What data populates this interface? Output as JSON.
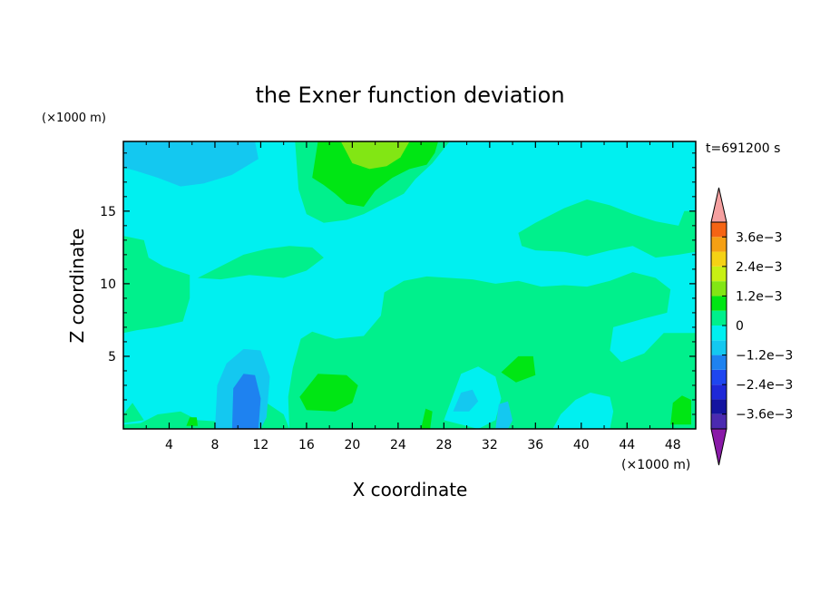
{
  "chart_data": {
    "type": "heatmap",
    "title": "the Exner function deviation",
    "time_label": "t=691200 s",
    "xlabel": "X coordinate",
    "ylabel": "Z coordinate",
    "x_unit": "(×1000 m)",
    "y_unit": "(×1000 m)",
    "xlim": [
      0,
      50
    ],
    "ylim": [
      0,
      19.8
    ],
    "x_ticks": [
      "4",
      "8",
      "12",
      "16",
      "20",
      "24",
      "28",
      "32",
      "36",
      "40",
      "44",
      "48"
    ],
    "x_tick_values": [
      4,
      8,
      12,
      16,
      20,
      24,
      28,
      32,
      36,
      40,
      44,
      48
    ],
    "y_ticks": [
      "5",
      "10",
      "15"
    ],
    "y_tick_values": [
      5,
      10,
      15
    ],
    "colorbar": {
      "levels": [
        -0.0042,
        -0.0036,
        -0.003,
        -0.0024,
        -0.0018,
        -0.0012,
        -0.0006,
        0,
        0.0006,
        0.0012,
        0.0018,
        0.0024,
        0.003,
        0.0036,
        0.0042
      ],
      "colors": [
        "#8a1aa8",
        "#4b2ab0",
        "#1414a0",
        "#1e28d8",
        "#1e46f0",
        "#1e82f0",
        "#14c8f0",
        "#00f0f0",
        "#00f08c",
        "#00e614",
        "#82e614",
        "#c8f014",
        "#f5d214",
        "#f5a014",
        "#f56414",
        "#f01e14",
        "#f5a0a0"
      ],
      "labels": [
        "3.6e−3",
        "2.4e−3",
        "1.2e−3",
        "0",
        "−1.2e−3",
        "−2.4e−3",
        "−3.6e−3"
      ],
      "label_values": [
        0.0036,
        0.0024,
        0.0012,
        0,
        -0.0012,
        -0.0024,
        -0.0036
      ]
    },
    "regions": [
      {
        "value": -0.0003,
        "points": [
          [
            0,
            0
          ],
          [
            50,
            0
          ],
          [
            50,
            19.8
          ],
          [
            0,
            19.8
          ]
        ]
      },
      {
        "value": 0.0003,
        "points": [
          [
            14.5,
            0
          ],
          [
            50,
            0
          ],
          [
            50,
            6.6
          ],
          [
            47.2,
            6.6
          ],
          [
            45.5,
            5.2
          ],
          [
            43.5,
            4.6
          ],
          [
            42.5,
            5.4
          ],
          [
            42.8,
            7.0
          ],
          [
            45.5,
            7.6
          ],
          [
            47.5,
            8.0
          ],
          [
            47.8,
            9.6
          ],
          [
            46.5,
            10.4
          ],
          [
            44.5,
            10.8
          ],
          [
            42.5,
            10.2
          ],
          [
            40.5,
            9.8
          ],
          [
            38.5,
            9.9
          ],
          [
            36.5,
            9.8
          ],
          [
            34.5,
            10.2
          ],
          [
            32.5,
            10.0
          ],
          [
            30.5,
            10.3
          ],
          [
            28.5,
            10.4
          ],
          [
            26.5,
            10.5
          ],
          [
            24.5,
            10.2
          ],
          [
            22.8,
            9.4
          ],
          [
            22.5,
            7.8
          ],
          [
            21.0,
            6.4
          ],
          [
            18.5,
            6.2
          ],
          [
            16.5,
            6.7
          ],
          [
            15.5,
            6.2
          ],
          [
            14.8,
            4.2
          ],
          [
            14.4,
            2.2
          ]
        ]
      },
      {
        "value": 0.0003,
        "points": [
          [
            15.0,
            19.8
          ],
          [
            28.5,
            19.8
          ],
          [
            27.0,
            18.3
          ],
          [
            25.5,
            17.2
          ],
          [
            24.5,
            16.2
          ],
          [
            23.0,
            15.6
          ],
          [
            22.0,
            15.2
          ],
          [
            21.0,
            14.8
          ],
          [
            19.5,
            14.4
          ],
          [
            17.5,
            14.2
          ],
          [
            16.0,
            14.8
          ],
          [
            15.3,
            16.5
          ]
        ]
      },
      {
        "value": 0.0003,
        "points": [
          [
            34.5,
            13.5
          ],
          [
            36.0,
            14.2
          ],
          [
            38.5,
            15.2
          ],
          [
            40.5,
            15.8
          ],
          [
            42.5,
            15.4
          ],
          [
            44.5,
            14.8
          ],
          [
            46.5,
            14.3
          ],
          [
            48.5,
            14.0
          ],
          [
            49.0,
            15.0
          ],
          [
            50,
            15.0
          ],
          [
            50,
            12.2
          ],
          [
            48.5,
            12.0
          ],
          [
            46.5,
            11.8
          ],
          [
            44.5,
            12.6
          ],
          [
            42.5,
            12.3
          ],
          [
            40.5,
            11.9
          ],
          [
            38.5,
            12.2
          ],
          [
            36.0,
            12.3
          ],
          [
            34.8,
            12.6
          ]
        ]
      },
      {
        "value": 0.0003,
        "points": [
          [
            0,
            13.3
          ],
          [
            1.8,
            13.0
          ],
          [
            2.2,
            11.8
          ],
          [
            3.5,
            11.2
          ],
          [
            5.8,
            10.6
          ],
          [
            5.8,
            9.0
          ],
          [
            5.2,
            7.4
          ],
          [
            3.0,
            7.0
          ],
          [
            1.2,
            6.8
          ],
          [
            0,
            6.6
          ]
        ]
      },
      {
        "value": 0.0003,
        "points": [
          [
            6.5,
            10.4
          ],
          [
            7.5,
            10.8
          ],
          [
            9.0,
            11.4
          ],
          [
            10.5,
            12.0
          ],
          [
            12.5,
            12.4
          ],
          [
            14.5,
            12.6
          ],
          [
            16.5,
            12.5
          ],
          [
            17.5,
            11.8
          ],
          [
            16.0,
            10.9
          ],
          [
            14.0,
            10.4
          ],
          [
            11.0,
            10.6
          ],
          [
            8.5,
            10.3
          ]
        ]
      },
      {
        "value": 0.0003,
        "points": [
          [
            0,
            0
          ],
          [
            14.5,
            0
          ],
          [
            14.0,
            1.0
          ],
          [
            12.5,
            1.8
          ],
          [
            11.8,
            2.5
          ],
          [
            10.2,
            1.6
          ],
          [
            8.5,
            0.5
          ],
          [
            6.5,
            0.6
          ],
          [
            5.0,
            1.2
          ],
          [
            3.0,
            1.0
          ],
          [
            1.5,
            0.4
          ],
          [
            0,
            0.3
          ]
        ]
      },
      {
        "value": 0.0003,
        "points": [
          [
            0,
            1.0
          ],
          [
            0.8,
            1.8
          ],
          [
            1.8,
            0.6
          ],
          [
            0,
            0.4
          ]
        ]
      },
      {
        "value": -0.0003,
        "points": [
          [
            37.5,
            0
          ],
          [
            42.5,
            0
          ],
          [
            42.8,
            1.2
          ],
          [
            42.5,
            2.2
          ],
          [
            40.8,
            2.5
          ],
          [
            39.5,
            2.0
          ],
          [
            38.2,
            1.0
          ]
        ]
      },
      {
        "value": -0.0003,
        "points": [
          [
            28.0,
            0.6
          ],
          [
            29.5,
            3.8
          ],
          [
            31.0,
            4.3
          ],
          [
            32.5,
            3.6
          ],
          [
            33.0,
            2.1
          ],
          [
            32.5,
            0.6
          ],
          [
            31.0,
            0
          ]
        ]
      },
      {
        "value": 0.0009,
        "points": [
          [
            16.5,
            17.3
          ],
          [
            17.0,
            19.8
          ],
          [
            27.5,
            19.8
          ],
          [
            27.2,
            19.0
          ],
          [
            26.5,
            18.2
          ],
          [
            25.0,
            17.9
          ],
          [
            23.5,
            17.3
          ],
          [
            22.0,
            16.4
          ],
          [
            21.0,
            15.3
          ],
          [
            19.5,
            15.5
          ],
          [
            18.5,
            16.2
          ],
          [
            17.5,
            16.8
          ]
        ]
      },
      {
        "value": 0.0009,
        "points": [
          [
            15.4,
            2.2
          ],
          [
            17.0,
            3.8
          ],
          [
            19.5,
            3.7
          ],
          [
            20.5,
            3.0
          ],
          [
            20.0,
            1.8
          ],
          [
            18.5,
            1.2
          ],
          [
            16.0,
            1.3
          ]
        ]
      },
      {
        "value": 0.0009,
        "points": [
          [
            33.0,
            3.9
          ],
          [
            34.5,
            5.0
          ],
          [
            35.8,
            5.0
          ],
          [
            36.0,
            3.7
          ],
          [
            34.3,
            3.2
          ]
        ]
      },
      {
        "value": 0.0009,
        "points": [
          [
            47.8,
            0.3
          ],
          [
            48.0,
            1.8
          ],
          [
            48.8,
            2.3
          ],
          [
            49.6,
            2.0
          ],
          [
            49.6,
            0.3
          ]
        ]
      },
      {
        "value": 0.0009,
        "points": [
          [
            26.0,
            0
          ],
          [
            26.4,
            1.4
          ],
          [
            27.0,
            1.2
          ],
          [
            26.8,
            0
          ]
        ]
      },
      {
        "value": 0.0009,
        "points": [
          [
            5.5,
            0.2
          ],
          [
            5.8,
            0.8
          ],
          [
            6.4,
            0.8
          ],
          [
            6.5,
            0.2
          ]
        ]
      },
      {
        "value": 0.0015,
        "points": [
          [
            19.0,
            19.8
          ],
          [
            25.0,
            19.8
          ],
          [
            24.2,
            18.7
          ],
          [
            23.0,
            18.1
          ],
          [
            21.5,
            17.9
          ],
          [
            20.0,
            18.3
          ]
        ]
      },
      {
        "value": -0.0009,
        "points": [
          [
            0,
            19.8
          ],
          [
            11.5,
            19.8
          ],
          [
            11.8,
            18.6
          ],
          [
            9.5,
            17.5
          ],
          [
            7.0,
            16.9
          ],
          [
            5.0,
            16.7
          ],
          [
            3.0,
            17.3
          ],
          [
            1.0,
            17.8
          ],
          [
            0,
            18.0
          ]
        ]
      },
      {
        "value": -0.0009,
        "points": [
          [
            8.0,
            0
          ],
          [
            8.2,
            3.0
          ],
          [
            9.0,
            4.5
          ],
          [
            10.5,
            5.5
          ],
          [
            12.0,
            5.4
          ],
          [
            12.8,
            3.6
          ],
          [
            12.5,
            0.8
          ],
          [
            12.0,
            0
          ]
        ]
      },
      {
        "value": -0.0009,
        "points": [
          [
            28.8,
            1.2
          ],
          [
            29.5,
            2.5
          ],
          [
            30.5,
            2.7
          ],
          [
            31.0,
            1.9
          ],
          [
            30.2,
            1.2
          ]
        ]
      },
      {
        "value": -0.0009,
        "points": [
          [
            32.5,
            0
          ],
          [
            32.8,
            1.7
          ],
          [
            33.6,
            1.9
          ],
          [
            34.0,
            0.6
          ],
          [
            33.6,
            0
          ]
        ]
      },
      {
        "value": -0.0015,
        "points": [
          [
            9.5,
            0
          ],
          [
            9.6,
            2.8
          ],
          [
            10.5,
            3.8
          ],
          [
            11.5,
            3.7
          ],
          [
            12.0,
            2.1
          ],
          [
            11.8,
            0
          ]
        ]
      }
    ]
  }
}
